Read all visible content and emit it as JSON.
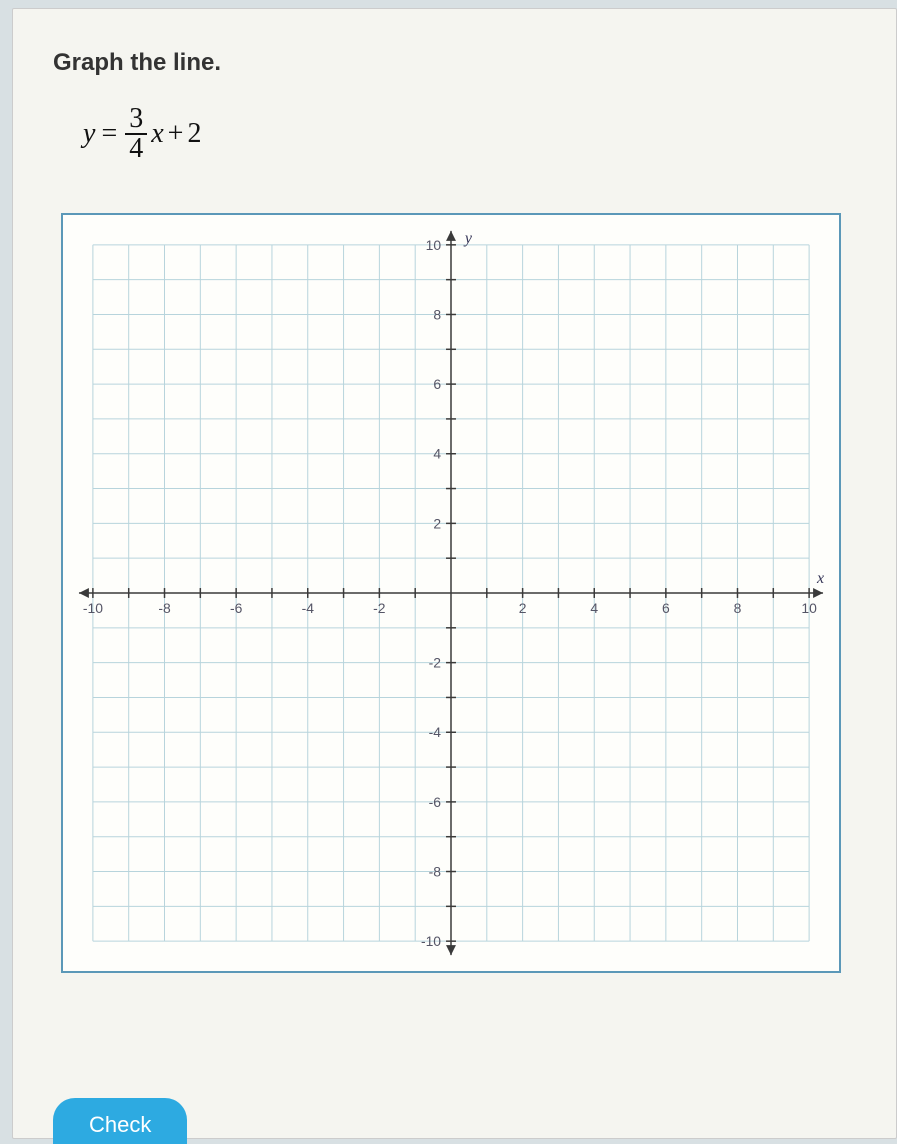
{
  "prompt": "Graph the line.",
  "equation": {
    "y": "y",
    "eq": "=",
    "num": "3",
    "den": "4",
    "x": "x",
    "plus": "+",
    "const": "2"
  },
  "check_label": "Check",
  "graph": {
    "type": "cartesian-grid",
    "xlim": [
      -10,
      10
    ],
    "ylim": [
      -10,
      10
    ],
    "tick_step": 1,
    "label_step": 2,
    "x_axis_label": "x",
    "y_axis_label": "y",
    "x_tick_labels": [
      "-10",
      "-8",
      "-6",
      "-4",
      "-2",
      "2",
      "4",
      "6",
      "8",
      "10"
    ],
    "y_tick_labels_pos": [
      "2",
      "4",
      "6",
      "8",
      "10"
    ],
    "y_tick_labels_neg": [
      "-2",
      "-4",
      "-6",
      "-8",
      "-10"
    ],
    "grid_color": "#b7d4dc",
    "axis_color": "#3a3a3a",
    "background_color": "#fefefb",
    "border_color": "#5b98b8"
  }
}
